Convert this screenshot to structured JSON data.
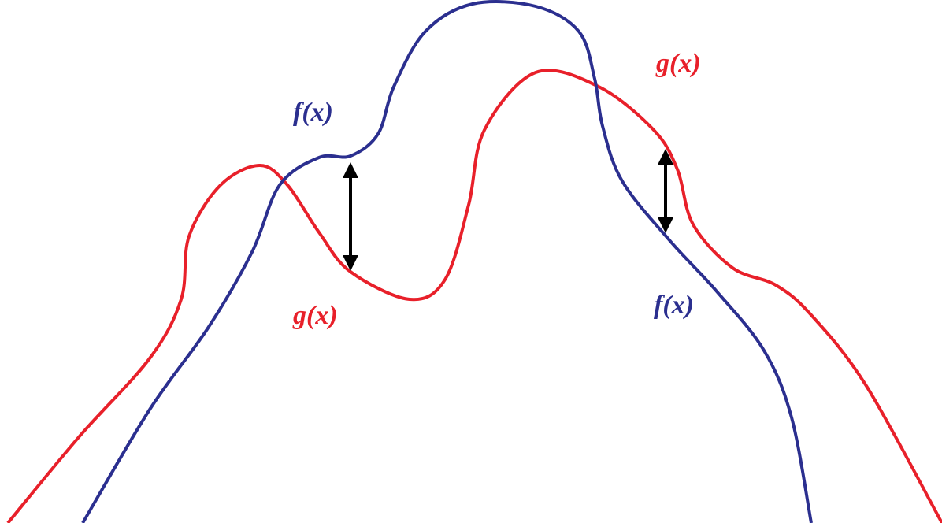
{
  "labels": [
    "f(x)",
    "g(x)",
    "g(x)",
    "f(x)"
  ]
}
